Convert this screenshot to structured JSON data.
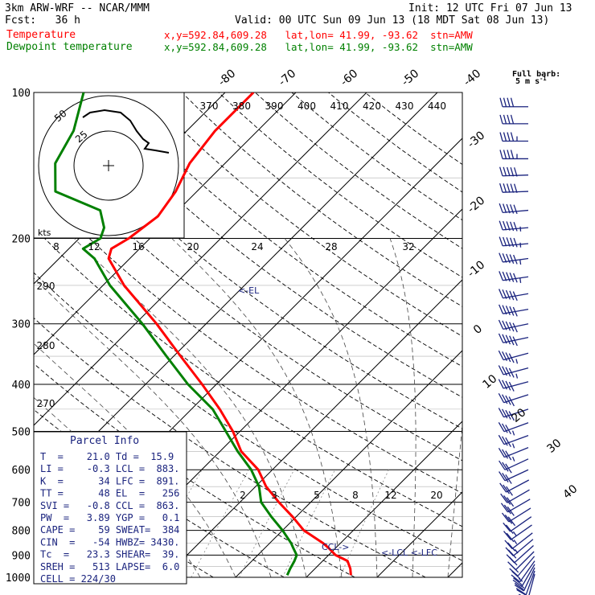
{
  "header": {
    "model": "3km ARW-WRF -- NCAR/MMM",
    "init": "Init: 12 UTC Fri 07 Jun 13",
    "fcst": "Fcst:   36 h",
    "valid": "Valid: 00 UTC Sun 09 Jun 13 (18 MDT Sat 08 Jun 13)",
    "temp_label": "Temperature",
    "temp_loc": "x,y=592.84,609.28   lat,lon= 41.99, -93.62  stn=AMW",
    "dew_label": "Dewpoint temperature",
    "dew_loc": "x,y=592.84,609.28   lat,lon= 41.99, -93.62  stn=AMW"
  },
  "colors": {
    "temperature": "#ff0000",
    "dewpoint": "#008000",
    "wind": "#1a237e",
    "info": "#1a237e"
  },
  "barb_legend": {
    "title": "Full barb:",
    "value": "5 m s",
    "unit_exp": "-1"
  },
  "hodograph": {
    "ring_labels": [
      "25",
      "50"
    ],
    "units": "kts",
    "speed_ticks": [
      "8",
      "12",
      "16",
      "20",
      "24",
      "28",
      "32"
    ]
  },
  "theta_labels": [
    "370",
    "380",
    "390",
    "400",
    "410",
    "420",
    "430",
    "440"
  ],
  "theta_left_labels": [
    "290",
    "280",
    "270"
  ],
  "mixing_ratio_labels": [
    "2",
    "3",
    "5",
    "8",
    "12",
    "20"
  ],
  "isotherm_labels": [
    "-80",
    "-70",
    "-60",
    "-50",
    "-40",
    "-30",
    "-20",
    "-10",
    "0",
    "10",
    "20",
    "30",
    "40"
  ],
  "levels": {
    "el": "<-EL",
    "ccl": "CCL->",
    "lcl_lfc": "<-LCL <-LFC"
  },
  "parcel_info": {
    "title": "Parcel Info",
    "rows": [
      "T  =    21.0 Td =  15.9",
      "LI =    -0.3 LCL =  883.",
      "K  =      34 LFC =  891.",
      "TT =      48 EL  =   256",
      "SVI =   -0.8 CCL =  863.",
      "PW  =   3.89 YGP =   0.1",
      "CAPE =    59 SWEAT=  384",
      "CIN  =   -54 HWBZ= 3430.",
      "Tc  =   23.3 SHEAR=  39.",
      "SREH =   513 LAPSE=  6.0",
      "CELL = 224/30"
    ]
  },
  "chart_data": {
    "type": "line",
    "title": "",
    "xlabel": "",
    "ylabel": "",
    "y_scale": "log pressure (hPa), reversed",
    "ylim": [
      1000,
      100
    ],
    "pressure_ticks": [
      100,
      200,
      300,
      400,
      500,
      600,
      700,
      800,
      900,
      1000
    ],
    "series": [
      {
        "name": "Temperature",
        "pressure": [
          990,
          960,
          925,
          900,
          870,
          850,
          800,
          750,
          700,
          650,
          600,
          550,
          500,
          450,
          400,
          350,
          300,
          250,
          220,
          210,
          200,
          180,
          160,
          140,
          120,
          105,
          100
        ],
        "values": [
          26,
          25,
          23.5,
          21,
          19,
          17.5,
          13,
          9.5,
          5.5,
          1.5,
          -2,
          -7,
          -11,
          -16,
          -22,
          -29,
          -37,
          -47,
          -53,
          -54,
          -53,
          -52,
          -53,
          -55,
          -56,
          -56,
          -56
        ]
      },
      {
        "name": "Dewpoint temperature",
        "pressure": [
          990,
          960,
          925,
          900,
          870,
          850,
          800,
          750,
          700,
          650,
          600,
          550,
          500,
          450,
          400,
          350,
          300,
          250,
          220,
          210,
          200,
          190,
          175,
          160,
          140,
          120,
          100
        ],
        "values": [
          17,
          16.5,
          16,
          15.5,
          14,
          13,
          10,
          6.5,
          3,
          0.5,
          -3,
          -7.5,
          -12,
          -17,
          -24,
          -31,
          -39,
          -49,
          -55,
          -58,
          -57,
          -58,
          -61,
          -70,
          -74,
          -76,
          -80
        ]
      }
    ],
    "wind_barbs": {
      "pressure": [
        985,
        970,
        955,
        940,
        925,
        905,
        885,
        860,
        835,
        810,
        780,
        750,
        720,
        690,
        660,
        630,
        600,
        570,
        540,
        510,
        480,
        450,
        420,
        395,
        370,
        345,
        320,
        300,
        280,
        260,
        240,
        220,
        205,
        190,
        175,
        160,
        148,
        137,
        126,
        116,
        107
      ],
      "direction_deg": [
        195,
        200,
        205,
        210,
        215,
        220,
        225,
        228,
        230,
        232,
        235,
        235,
        238,
        240,
        240,
        242,
        245,
        245,
        248,
        250,
        250,
        252,
        252,
        255,
        255,
        255,
        258,
        258,
        260,
        260,
        262,
        262,
        265,
        265,
        265,
        268,
        268,
        270,
        270,
        270,
        270
      ],
      "speed_ms": [
        5,
        8,
        10,
        12,
        13,
        13,
        12,
        12,
        12,
        13,
        13,
        14,
        15,
        15,
        16,
        16,
        17,
        17,
        18,
        18,
        19,
        20,
        21,
        22,
        23,
        24,
        25,
        25,
        26,
        27,
        28,
        28,
        29,
        28,
        27,
        26,
        25,
        24,
        23,
        22,
        22
      ]
    }
  }
}
